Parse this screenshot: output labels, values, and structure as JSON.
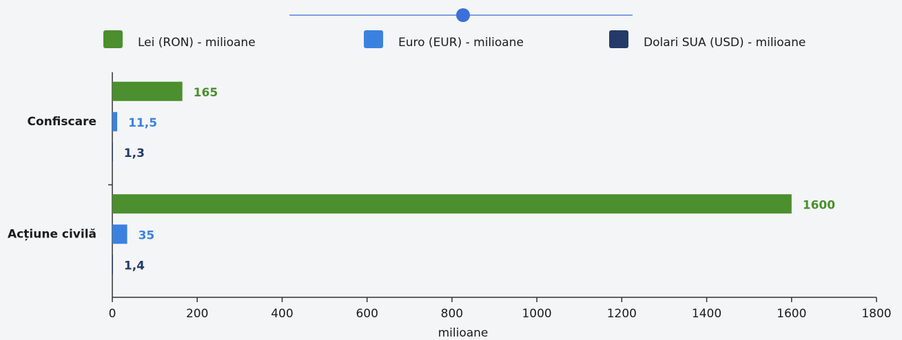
{
  "chart_data": {
    "type": "bar",
    "orientation": "horizontal",
    "categories": [
      "Confiscare",
      "Acțiune civilă"
    ],
    "series": [
      {
        "name": "Lei (RON) - milioane",
        "color": "#4b8f2e",
        "values": [
          165,
          1600
        ]
      },
      {
        "name": "Euro (EUR) - milioane",
        "color": "#3b82df",
        "values": [
          11.5,
          35
        ],
        "value_labels": [
          "11,5",
          "35"
        ]
      },
      {
        "name": "Dolari SUA (USD) - milioane",
        "color": "#243b68",
        "values": [
          1.3,
          1.4
        ],
        "value_labels": [
          "1,3",
          "1,4"
        ]
      }
    ],
    "xlabel": "milioane",
    "xlim": [
      0,
      1800
    ],
    "xticks": [
      0,
      200,
      400,
      600,
      800,
      1000,
      1200,
      1400,
      1600,
      1800
    ],
    "grid": false,
    "legend": "top"
  }
}
